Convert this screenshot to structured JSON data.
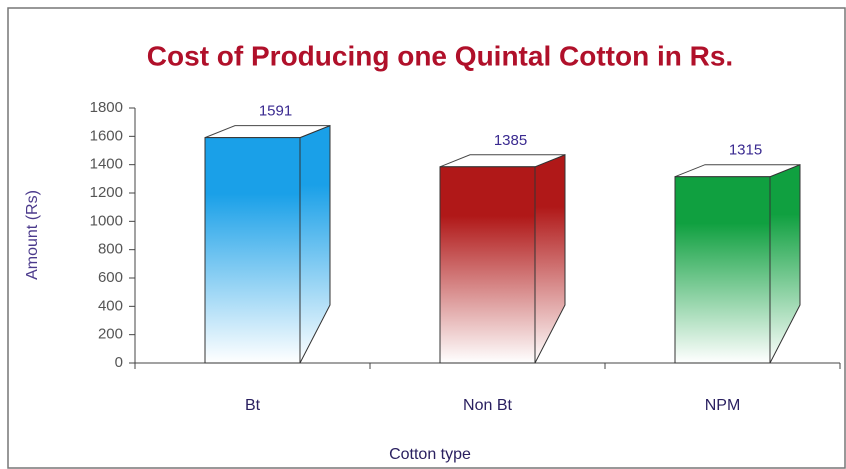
{
  "chart_data": {
    "type": "bar3d",
    "title": "Cost of Producing one Quintal Cotton in Rs.",
    "x_label": "Cotton type",
    "y_label": "Amount (Rs)",
    "categories": [
      "Bt",
      "Non Bt",
      "NPM"
    ],
    "values": [
      1591,
      1385,
      1315
    ],
    "colors": [
      "#1aa0e8",
      "#b01818",
      "#10a040"
    ],
    "ylim": [
      0,
      1800
    ],
    "yticks": [
      0,
      200,
      400,
      600,
      800,
      1000,
      1200,
      1400,
      1600,
      1800
    ]
  }
}
